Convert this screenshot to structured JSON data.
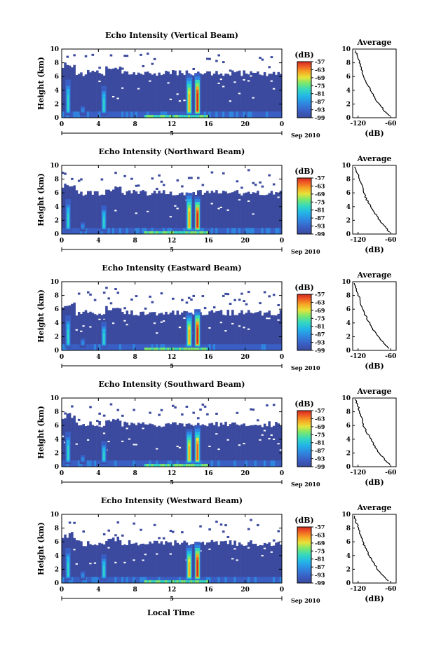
{
  "figure": {
    "xlabel": "Local Time",
    "date_label": "Sep 2010",
    "day_label": "5",
    "colorbar_unit": "(dB)",
    "avg_title": "Average",
    "avg_xlabel": "(dB)"
  },
  "chart_data": [
    {
      "type": "heatmap",
      "title": "Echo Intensity (Vertical Beam)",
      "ylabel": "Height (km)",
      "xlabel": "Local Time",
      "x_ticks": [
        "0",
        "4",
        "8",
        "12",
        "16",
        "20",
        "0"
      ],
      "xlim_hours": [
        0,
        24
      ],
      "y_ticks": [
        "0",
        "2",
        "4",
        "6",
        "8",
        "10"
      ],
      "ylim_km": [
        0,
        10
      ],
      "colorbar_ticks": [
        "-57",
        "-63",
        "-69",
        "-75",
        "-81",
        "-87",
        "-93",
        "-99"
      ],
      "colorbar_range_db": [
        -99,
        -57
      ],
      "echo_top_km": 6.5,
      "convective_cells": [
        {
          "time_h": 0.7,
          "top_km": 6.0,
          "peak_db": -81
        },
        {
          "time_h": 2.3,
          "top_km": 2.0,
          "peak_db": -87
        },
        {
          "time_h": 4.6,
          "top_km": 5.0,
          "peak_db": -81
        },
        {
          "time_h": 13.9,
          "top_km": 6.3,
          "peak_db": -69
        },
        {
          "time_h": 14.8,
          "top_km": 6.5,
          "peak_db": -57
        }
      ],
      "average_profile": {
        "title": "Average",
        "xlabel": "(dB)",
        "x_ticks": [
          "-120",
          "-60"
        ],
        "y_ticks": [
          "0",
          "2",
          "4",
          "6",
          "8",
          "10"
        ],
        "height_km": [
          0.3,
          1,
          2,
          3,
          4,
          5,
          6,
          7,
          8,
          9,
          9.8
        ],
        "db": [
          -62,
          -71,
          -82,
          -90,
          -97,
          -104,
          -110,
          -113,
          -117,
          -121,
          -125
        ]
      }
    },
    {
      "type": "heatmap",
      "title": "Echo Intensity (Northward Beam)",
      "ylabel": "Height (km)",
      "xlabel": "Local Time",
      "x_ticks": [
        "0",
        "4",
        "8",
        "12",
        "16",
        "20",
        "0"
      ],
      "xlim_hours": [
        0,
        24
      ],
      "y_ticks": [
        "0",
        "2",
        "4",
        "6",
        "8",
        "10"
      ],
      "ylim_km": [
        0,
        10
      ],
      "colorbar_ticks": [
        "-57",
        "-63",
        "-69",
        "-75",
        "-81",
        "-87",
        "-93",
        "-99"
      ],
      "colorbar_range_db": [
        -99,
        -57
      ],
      "echo_top_km": 6.0,
      "convective_cells": [
        {
          "time_h": 0.7,
          "top_km": 5.5,
          "peak_db": -81
        },
        {
          "time_h": 2.3,
          "top_km": 2.0,
          "peak_db": -87
        },
        {
          "time_h": 4.6,
          "top_km": 4.5,
          "peak_db": -81
        },
        {
          "time_h": 13.9,
          "top_km": 6.0,
          "peak_db": -69
        },
        {
          "time_h": 14.8,
          "top_km": 5.5,
          "peak_db": -57
        }
      ],
      "average_profile": {
        "title": "Average",
        "xlabel": "(dB)",
        "x_ticks": [
          "-120",
          "-60"
        ],
        "y_ticks": [
          "0",
          "2",
          "4",
          "6",
          "8",
          "10"
        ],
        "height_km": [
          0.3,
          1,
          2,
          3,
          4,
          5,
          6,
          7,
          8,
          9,
          9.8
        ],
        "db": [
          -62,
          -70,
          -80,
          -89,
          -96,
          -104,
          -110,
          -113,
          -117,
          -122,
          -126
        ]
      }
    },
    {
      "type": "heatmap",
      "title": "Echo Intensity (Eastward Beam)",
      "ylabel": "Height (km)",
      "xlabel": "Local Time",
      "x_ticks": [
        "0",
        "4",
        "8",
        "12",
        "16",
        "20",
        "0"
      ],
      "xlim_hours": [
        0,
        24
      ],
      "y_ticks": [
        "0",
        "2",
        "4",
        "6",
        "8",
        "10"
      ],
      "ylim_km": [
        0,
        10
      ],
      "colorbar_ticks": [
        "-57",
        "-63",
        "-69",
        "-75",
        "-81",
        "-87",
        "-93",
        "-99"
      ],
      "colorbar_range_db": [
        -99,
        -57
      ],
      "echo_top_km": 5.5,
      "convective_cells": [
        {
          "time_h": 0.7,
          "top_km": 5.5,
          "peak_db": -81
        },
        {
          "time_h": 2.3,
          "top_km": 2.0,
          "peak_db": -87
        },
        {
          "time_h": 4.6,
          "top_km": 4.5,
          "peak_db": -81
        },
        {
          "time_h": 13.9,
          "top_km": 5.5,
          "peak_db": -69
        },
        {
          "time_h": 14.8,
          "top_km": 6.0,
          "peak_db": -57
        }
      ],
      "average_profile": {
        "title": "Average",
        "xlabel": "(dB)",
        "x_ticks": [
          "-120",
          "-60"
        ],
        "y_ticks": [
          "0",
          "2",
          "4",
          "6",
          "8",
          "10"
        ],
        "height_km": [
          0.3,
          1,
          2,
          3,
          4,
          5,
          6,
          7,
          8,
          9,
          9.8
        ],
        "db": [
          -63,
          -72,
          -83,
          -92,
          -99,
          -106,
          -112,
          -116,
          -119,
          -124,
          -127
        ]
      }
    },
    {
      "type": "heatmap",
      "title": "Echo Intensity (Southward Beam)",
      "ylabel": "Height (km)",
      "xlabel": "Local Time",
      "x_ticks": [
        "0",
        "4",
        "8",
        "12",
        "16",
        "20",
        "0"
      ],
      "xlim_hours": [
        0,
        24
      ],
      "y_ticks": [
        "0",
        "2",
        "4",
        "6",
        "8",
        "10"
      ],
      "ylim_km": [
        0,
        10
      ],
      "colorbar_ticks": [
        "-57",
        "-63",
        "-69",
        "-75",
        "-81",
        "-87",
        "-93",
        "-99"
      ],
      "colorbar_range_db": [
        -99,
        -57
      ],
      "echo_top_km": 6.2,
      "convective_cells": [
        {
          "time_h": 0.7,
          "top_km": 5.5,
          "peak_db": -81
        },
        {
          "time_h": 2.3,
          "top_km": 2.0,
          "peak_db": -87
        },
        {
          "time_h": 4.6,
          "top_km": 4.0,
          "peak_db": -81
        },
        {
          "time_h": 13.9,
          "top_km": 5.5,
          "peak_db": -69
        },
        {
          "time_h": 14.8,
          "top_km": 6.0,
          "peak_db": -63
        }
      ],
      "average_profile": {
        "title": "Average",
        "xlabel": "(dB)",
        "x_ticks": [
          "-120",
          "-60"
        ],
        "y_ticks": [
          "0",
          "2",
          "4",
          "6",
          "8",
          "10"
        ],
        "height_km": [
          0.3,
          1,
          2,
          3,
          4,
          5,
          6,
          7,
          8,
          9,
          9.8
        ],
        "db": [
          -62,
          -71,
          -81,
          -90,
          -97,
          -104,
          -110,
          -113,
          -117,
          -121,
          -125
        ]
      }
    },
    {
      "type": "heatmap",
      "title": "Echo Intensity (Westward Beam)",
      "ylabel": "Height (km)",
      "xlabel": "Local Time",
      "x_ticks": [
        "0",
        "4",
        "8",
        "12",
        "16",
        "20",
        "0"
      ],
      "xlim_hours": [
        0,
        24
      ],
      "y_ticks": [
        "0",
        "2",
        "4",
        "6",
        "8",
        "10"
      ],
      "ylim_km": [
        0,
        10
      ],
      "colorbar_ticks": [
        "-57",
        "-63",
        "-69",
        "-75",
        "-81",
        "-87",
        "-93",
        "-99"
      ],
      "colorbar_range_db": [
        -99,
        -57
      ],
      "echo_top_km": 5.8,
      "convective_cells": [
        {
          "time_h": 0.7,
          "top_km": 5.5,
          "peak_db": -81
        },
        {
          "time_h": 2.3,
          "top_km": 2.0,
          "peak_db": -87
        },
        {
          "time_h": 4.6,
          "top_km": 4.5,
          "peak_db": -81
        },
        {
          "time_h": 13.9,
          "top_km": 5.5,
          "peak_db": -69
        },
        {
          "time_h": 14.8,
          "top_km": 6.0,
          "peak_db": -57
        }
      ],
      "average_profile": {
        "title": "Average",
        "xlabel": "(dB)",
        "x_ticks": [
          "-120",
          "-60"
        ],
        "y_ticks": [
          "0",
          "2",
          "4",
          "6",
          "8",
          "10"
        ],
        "height_km": [
          0.3,
          1,
          2,
          3,
          4,
          5,
          6,
          7,
          8,
          9,
          9.8
        ],
        "db": [
          -64,
          -73,
          -84,
          -92,
          -99,
          -106,
          -112,
          -115,
          -119,
          -124,
          -128
        ]
      }
    }
  ],
  "colors": {
    "background_echo": "#3b4a9e",
    "colormap": [
      "#3b4a9e",
      "#3a5fc4",
      "#2f86e0",
      "#23b5e8",
      "#34d8c0",
      "#7ee86a",
      "#e8e23a",
      "#f5a623",
      "#ef5a25",
      "#d42a20"
    ]
  }
}
